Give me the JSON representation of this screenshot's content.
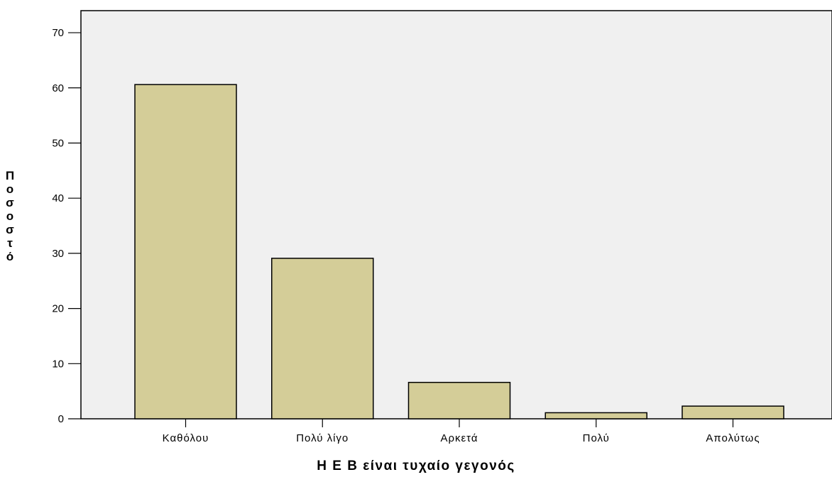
{
  "chart_data": {
    "type": "bar",
    "categories": [
      "Καθόλου",
      "Πολύ λίγο",
      "Αρκετά",
      "Πολύ",
      "Απολύτως"
    ],
    "values": [
      60.6,
      29.1,
      6.6,
      1.1,
      2.3
    ],
    "title": "",
    "xlabel": "Η Ε Β είναι τυχαίο γεγονός",
    "ylabel": "Ποσοστό",
    "ylim": [
      0,
      74
    ],
    "yticks": [
      0,
      10,
      20,
      30,
      40,
      50,
      60,
      70
    ],
    "grid": false,
    "legend": "none",
    "colors": {
      "bar_fill": "#d4cd98",
      "bar_stroke": "#000000",
      "plot_background": "#f0f0f0"
    }
  }
}
